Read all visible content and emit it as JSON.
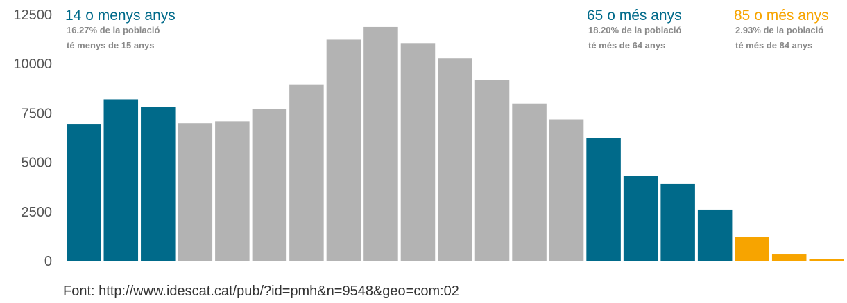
{
  "chart_data": {
    "type": "bar",
    "title": "",
    "xlabel": "",
    "ylabel": "",
    "ylim": [
      0,
      12500
    ],
    "yticks": [
      0,
      2500,
      5000,
      7500,
      10000,
      12500
    ],
    "grid": false,
    "values": [
      6950,
      8200,
      7820,
      6980,
      7080,
      7700,
      8930,
      11220,
      11870,
      11050,
      10280,
      9180,
      7980,
      7180,
      6230,
      4300,
      3900,
      2600,
      1200,
      350,
      80
    ],
    "bar_groups": [
      "young",
      "young",
      "young",
      "adult",
      "adult",
      "adult",
      "adult",
      "adult",
      "adult",
      "adult",
      "adult",
      "adult",
      "adult",
      "adult",
      "senior",
      "senior",
      "senior",
      "senior",
      "elderly",
      "elderly",
      "elderly"
    ],
    "colors": {
      "young": "#006a8a",
      "adult": "#b3b3b3",
      "senior": "#006a8a",
      "elderly": "#f7a400"
    },
    "annotations": [
      {
        "title": "14 o menys anys",
        "line1": "16.27% de la població",
        "line2": "té menys de 15 anys",
        "color": "#006a8a"
      },
      {
        "title": "65 o més anys",
        "line1": "18.20% de la població",
        "line2": "té més de 64 anys",
        "color": "#006a8a"
      },
      {
        "title": "85 o més anys",
        "line1": "2.93% de la població",
        "line2": "té més de 84 anys",
        "color": "#f7a400"
      }
    ],
    "source": "Font: http://www.idescat.cat/pub/?id=pmh&n=9548&geo=com:02"
  }
}
